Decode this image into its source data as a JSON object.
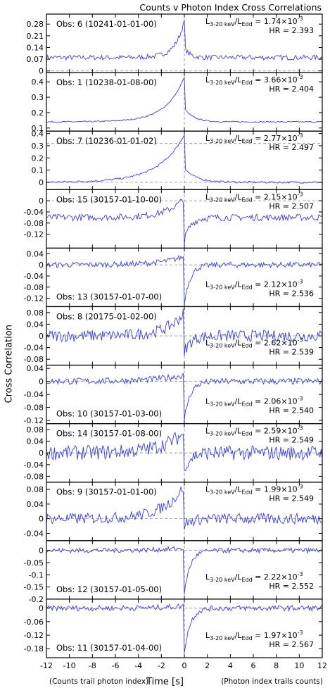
{
  "title": "Counts v Photon Index Cross Correlations",
  "ylabel": "Cross Correlation",
  "xlabel": "Time [s]",
  "note_left": "(Counts trail photon index)",
  "note_right": "(Photon index trails counts)",
  "colors": {
    "line": "#3a3fd6",
    "zero": "#888888",
    "frame": "#000000"
  },
  "chart_data": {
    "type": "line",
    "xlim": [
      -12,
      12
    ],
    "xticks": [
      -12,
      -10,
      -8,
      -6,
      -4,
      -2,
      0,
      2,
      4,
      6,
      8,
      10,
      12
    ],
    "xtick_labels": [
      "-12",
      "-10",
      "-8",
      "-6",
      "-4",
      "-2",
      "0",
      "2",
      "4",
      "6",
      "8",
      "10",
      "12"
    ],
    "panels": [
      {
        "obs": "Obs: 6 (10241-01-01-00)",
        "lum": "1.74",
        "hr": "HR = 2.393",
        "ylim": [
          -0.01,
          0.34
        ],
        "yticks": [
          0,
          0.07,
          0.14,
          0.21,
          0.28
        ],
        "ytick_labels": [
          "0",
          "0.07",
          "0.14",
          "0.21",
          "0.28"
        ],
        "profile": {
          "base": 0.08,
          "peak": 0.3,
          "rise": 0.8,
          "fall": 0.4,
          "dip": 0,
          "noise": 0.015
        }
      },
      {
        "obs": "Obs: 1 (10238-01-08-00)",
        "lum": "3.66",
        "hr": "HR = 2.404",
        "ylim": [
          0.08,
          0.46
        ],
        "yticks": [
          0.1,
          0.2,
          0.3,
          0.4
        ],
        "ytick_labels": [
          "0.1",
          "0.2",
          "0.3",
          "0.4"
        ],
        "profile": {
          "base": 0.14,
          "peak": 0.43,
          "rise": 1.6,
          "fall": 0.8,
          "dip": 0,
          "noise": 0.004
        }
      },
      {
        "obs": "Obs: 7 (10236-01-01-02)",
        "lum": "2.77",
        "hr": "HR = 2.497",
        "ylim": [
          -0.06,
          0.42
        ],
        "yticks": [
          0,
          0.1,
          0.2,
          0.3,
          0.4
        ],
        "ytick_labels": [
          "0",
          "0.1",
          "0.2",
          "0.3",
          "0.4"
        ],
        "profile": {
          "base": 0.0,
          "peak": 0.39,
          "rise": 2.2,
          "fall": 1.0,
          "dip": 0,
          "noise": 0.008
        }
      },
      {
        "obs": "Obs: 15 (30157-01-10-00)",
        "lum": "2.15",
        "hr": "HR = 2.507",
        "ylim": [
          -0.17,
          0.04
        ],
        "yticks": [
          0,
          -0.04,
          -0.08,
          -0.12
        ],
        "ytick_labels": [
          "0",
          "-0.04",
          "-0.08",
          "-0.12"
        ],
        "profile": {
          "base": -0.06,
          "peak": 0.01,
          "rise": 1.5,
          "fall": 0.3,
          "dip": -0.16,
          "noise": 0.012
        }
      },
      {
        "obs": "Obs: 13 (30157-01-07-00)",
        "lum": "2.12",
        "hr": "HR = 2.536",
        "ylim": [
          -0.15,
          0.06
        ],
        "yticks": [
          0.04,
          0,
          -0.04,
          -0.08,
          -0.12
        ],
        "ytick_labels": [
          "0.04",
          "0",
          "-0.04",
          "-0.08",
          "-0.12"
        ],
        "profile": {
          "base": 0.0,
          "peak": 0.03,
          "rise": 2.0,
          "fall": 0.2,
          "dip": -0.14,
          "noise": 0.01
        }
      },
      {
        "obs": "Obs: 8 (20175-01-02-00)",
        "lum": "2.62",
        "hr": "HR = 2.539",
        "ylim": [
          -0.1,
          0.1
        ],
        "yticks": [
          0.08,
          0.04,
          0,
          -0.04,
          -0.08
        ],
        "ytick_labels": [
          "0.08",
          "0.04",
          "0",
          "-0.04",
          "-0.08"
        ],
        "profile": {
          "base": 0.0,
          "peak": 0.08,
          "rise": 1.5,
          "fall": 0.2,
          "dip": -0.07,
          "noise": 0.02
        }
      },
      {
        "obs": "Obs: 10 (30157-01-03-00)",
        "lum": "2.06",
        "hr": "HR = 2.540",
        "ylim": [
          -0.13,
          0.05
        ],
        "yticks": [
          0.04,
          0,
          -0.04,
          -0.08,
          -0.12
        ],
        "ytick_labels": [
          "0.04",
          "0",
          "-0.04",
          "-0.08",
          "-0.12"
        ],
        "profile": {
          "base": 0.0,
          "peak": 0.02,
          "rise": 2.5,
          "fall": 0.2,
          "dip": -0.12,
          "noise": 0.01
        }
      },
      {
        "obs": "Obs: 14 (30157-01-08-00)",
        "lum": "2.59",
        "hr": "HR = 2.549",
        "ylim": [
          -0.1,
          0.1
        ],
        "yticks": [
          0.08,
          0.04,
          0,
          -0.04,
          -0.08
        ],
        "ytick_labels": [
          "0.08",
          "0.04",
          "0",
          "-0.04",
          "-0.08"
        ],
        "profile": {
          "base": 0.0,
          "peak": 0.07,
          "rise": 2.0,
          "fall": 0.2,
          "dip": -0.06,
          "noise": 0.025
        }
      },
      {
        "obs": "Obs: 9 (30157-01-01-00)",
        "lum": "1.99",
        "hr": "HR = 2.549",
        "ylim": [
          -0.06,
          0.1
        ],
        "yticks": [
          0.08,
          0.04,
          0,
          -0.04
        ],
        "ytick_labels": [
          "0.08",
          "0.04",
          "0",
          "-0.04"
        ],
        "profile": {
          "base": 0.0,
          "peak": 0.09,
          "rise": 1.8,
          "fall": 0.2,
          "dip": -0.03,
          "noise": 0.015
        }
      },
      {
        "obs": "Obs: 12 (30157-01-05-00)",
        "lum": "2.22",
        "hr": "HR = 2.552",
        "ylim": [
          -0.2,
          0.04
        ],
        "yticks": [
          0,
          -0.05,
          -0.1,
          -0.15,
          -0.2
        ],
        "ytick_labels": [
          "0",
          "-0.05",
          "-0.1",
          "-0.15",
          "-0.2"
        ],
        "profile": {
          "base": 0.0,
          "peak": 0.01,
          "rise": 2.0,
          "fall": 0.2,
          "dip": -0.18,
          "noise": 0.01
        }
      },
      {
        "obs": "Obs: 11 (30157-01-04-00)",
        "lum": "1.97",
        "hr": "HR = 2.567",
        "ylim": [
          -0.22,
          0.04
        ],
        "yticks": [
          0,
          -0.06,
          -0.12,
          -0.18
        ],
        "ytick_labels": [
          "0",
          "-0.06",
          "-0.12",
          "-0.18"
        ],
        "profile": {
          "base": 0.0,
          "peak": 0.01,
          "rise": 2.0,
          "fall": 0.2,
          "dip": -0.2,
          "noise": 0.012
        }
      }
    ]
  }
}
